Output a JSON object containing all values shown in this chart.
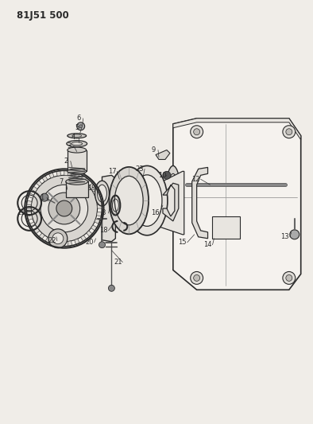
{
  "title_code": "81J51 500",
  "bg_color": "#f0ede8",
  "line_color": "#2a2a2a",
  "fig_width": 3.94,
  "fig_height": 5.33,
  "dpi": 100
}
